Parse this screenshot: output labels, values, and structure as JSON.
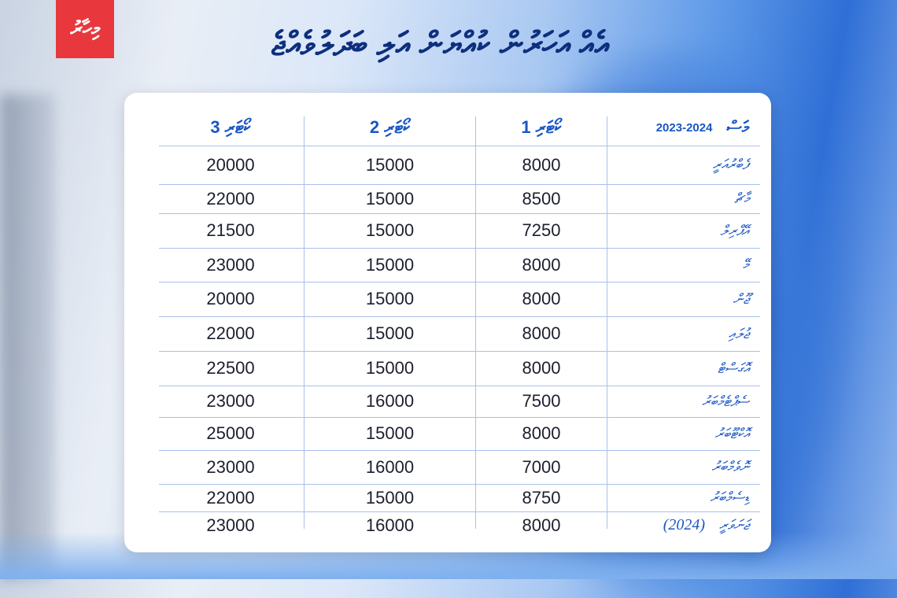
{
  "logo": "މިހާރު",
  "title": "އެއް އަހަރުން ކުއްޔަން އަލި ބަދަލުވެއްޖެ",
  "table": {
    "month_header": "މަސް",
    "year_range": "2023-2024",
    "columns": [
      "ކޯޓަރި 1",
      "ކޯޓަރި 2",
      "ކޯޓަރި 3"
    ],
    "rows": [
      {
        "month": "ފެބްރުއަރީ",
        "q1": "8000",
        "q2": "15000",
        "q3": "20000"
      },
      {
        "month": "މާޗް",
        "q1": "8500",
        "q2": "15000",
        "q3": "22000"
      },
      {
        "month": "އޭޕްރިލް",
        "q1": "7250",
        "q2": "15000",
        "q3": "21500"
      },
      {
        "month": "މޭ",
        "q1": "8000",
        "q2": "15000",
        "q3": "23000"
      },
      {
        "month": "ޖޫން",
        "q1": "8000",
        "q2": "15000",
        "q3": "20000"
      },
      {
        "month": "ޖުލައި",
        "q1": "8000",
        "q2": "15000",
        "q3": "22000"
      },
      {
        "month": "އޮގަސްޓް",
        "q1": "8000",
        "q2": "15000",
        "q3": "22500"
      },
      {
        "month": "ސެޕްޓެމްބަރު",
        "q1": "7500",
        "q2": "16000",
        "q3": "23000"
      },
      {
        "month": "އޮކްޓޫބަރު",
        "q1": "8000",
        "q2": "15000",
        "q3": "25000"
      },
      {
        "month": "ނޮވެމްބަރު",
        "q1": "7000",
        "q2": "16000",
        "q3": "23000"
      },
      {
        "month": "ޑިސެމްބަރު",
        "q1": "8750",
        "q2": "15000",
        "q3": "22000"
      },
      {
        "month": "ޖަނަވަރީ",
        "year": "(2024)",
        "q1": "8000",
        "q2": "16000",
        "q3": "23000"
      }
    ]
  }
}
